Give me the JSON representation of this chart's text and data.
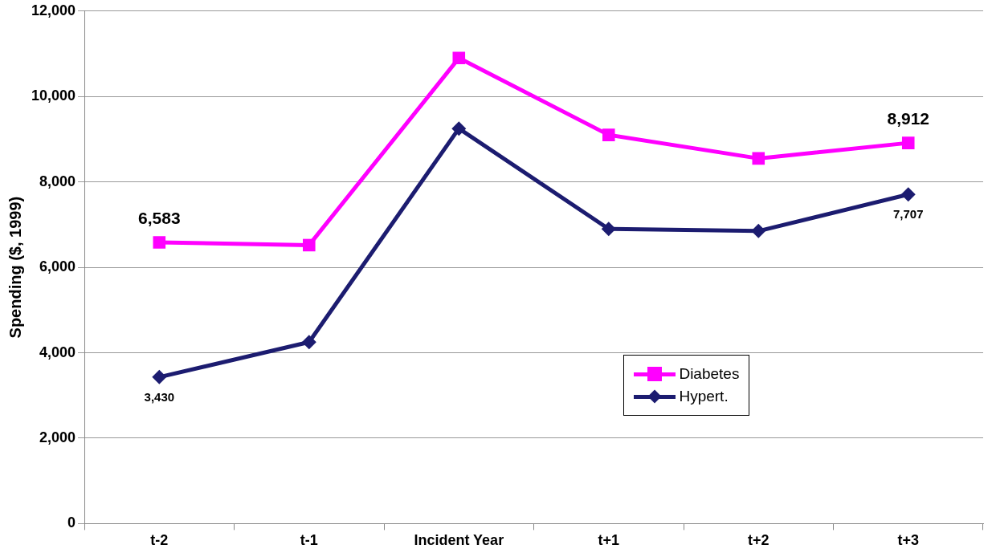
{
  "chart_data": {
    "type": "line",
    "ylabel": "Spending ($, 1999)",
    "categories": [
      "t-2",
      "t-1",
      "Incident Year",
      "t+1",
      "t+2",
      "t+3"
    ],
    "series": [
      {
        "name": "Diabetes",
        "color": "#ff00ff",
        "marker": "square",
        "values": [
          6583,
          6520,
          10900,
          9100,
          8550,
          8912
        ],
        "value_labels": [
          "6,583",
          null,
          null,
          null,
          null,
          "8,912"
        ]
      },
      {
        "name": "Hypert.",
        "color": "#1c1c70",
        "marker": "diamond",
        "values": [
          3430,
          4250,
          9250,
          6900,
          6850,
          7707
        ],
        "value_labels": [
          "3,430",
          null,
          null,
          null,
          null,
          "7,707"
        ]
      }
    ],
    "ylim": [
      0,
      12000
    ],
    "yticks": [
      {
        "value": 0,
        "label": "0"
      },
      {
        "value": 2000,
        "label": "2,000"
      },
      {
        "value": 4000,
        "label": "4,000"
      },
      {
        "value": 6000,
        "label": "6,000"
      },
      {
        "value": 8000,
        "label": "8,000"
      },
      {
        "value": 10000,
        "label": "10,000"
      },
      {
        "value": 12000,
        "label": "12,000"
      }
    ],
    "grid": "y",
    "legend": "bottom right",
    "line_style": "solid"
  }
}
